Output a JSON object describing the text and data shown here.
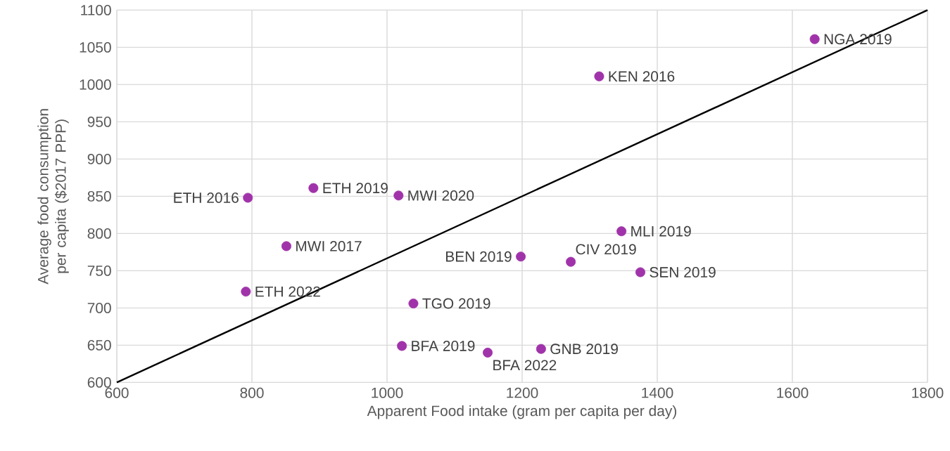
{
  "chart_data": {
    "type": "scatter",
    "xlabel": "Apparent Food intake (gram per capita per day)",
    "ylabel": "Average food consumption per capita ($2017 PPP)",
    "xlim": [
      600,
      1800
    ],
    "ylim": [
      600,
      1100
    ],
    "xticks": [
      600,
      800,
      1000,
      1200,
      1400,
      1600,
      1800
    ],
    "yticks": [
      600,
      650,
      700,
      750,
      800,
      850,
      900,
      950,
      1000,
      1050,
      1100
    ],
    "grid": true,
    "series": [
      {
        "type": "scatter",
        "marker": "circle",
        "color": "#a033aa",
        "x": [
          794,
          891,
          1017,
          1633,
          1314,
          1347,
          1198,
          1272,
          1375,
          1228,
          851,
          791,
          1039,
          1022,
          1149
        ],
        "values": [
          848,
          861,
          851,
          1061,
          1011,
          803,
          769,
          762,
          748,
          645,
          783,
          722,
          706,
          649,
          640
        ]
      },
      {
        "type": "line",
        "color": "#000000",
        "line_style": "solid",
        "x": [
          600,
          1800
        ],
        "values": [
          600,
          1100
        ]
      }
    ],
    "annotations": [
      {
        "text": "ETH 2016",
        "x": 794,
        "y": 848
      },
      {
        "text": "ETH 2019",
        "x": 891,
        "y": 861
      },
      {
        "text": "MWI 2020",
        "x": 1017,
        "y": 851
      },
      {
        "text": "NGA 2019",
        "x": 1633,
        "y": 1061
      },
      {
        "text": "KEN 2016",
        "x": 1314,
        "y": 1011
      },
      {
        "text": "MLI 2019",
        "x": 1347,
        "y": 803
      },
      {
        "text": "BEN 2019",
        "x": 1198,
        "y": 769
      },
      {
        "text": "CIV 2019",
        "x": 1272,
        "y": 762
      },
      {
        "text": "SEN 2019",
        "x": 1375,
        "y": 748
      },
      {
        "text": "GNB 2019",
        "x": 1228,
        "y": 645
      },
      {
        "text": "MWI 2017",
        "x": 851,
        "y": 783
      },
      {
        "text": "ETH 2022",
        "x": 791,
        "y": 722
      },
      {
        "text": "TGO 2019",
        "x": 1039,
        "y": 706
      },
      {
        "text": "BFA 2019",
        "x": 1022,
        "y": 649
      },
      {
        "text": "BFA 2022",
        "x": 1149,
        "y": 640
      }
    ]
  }
}
